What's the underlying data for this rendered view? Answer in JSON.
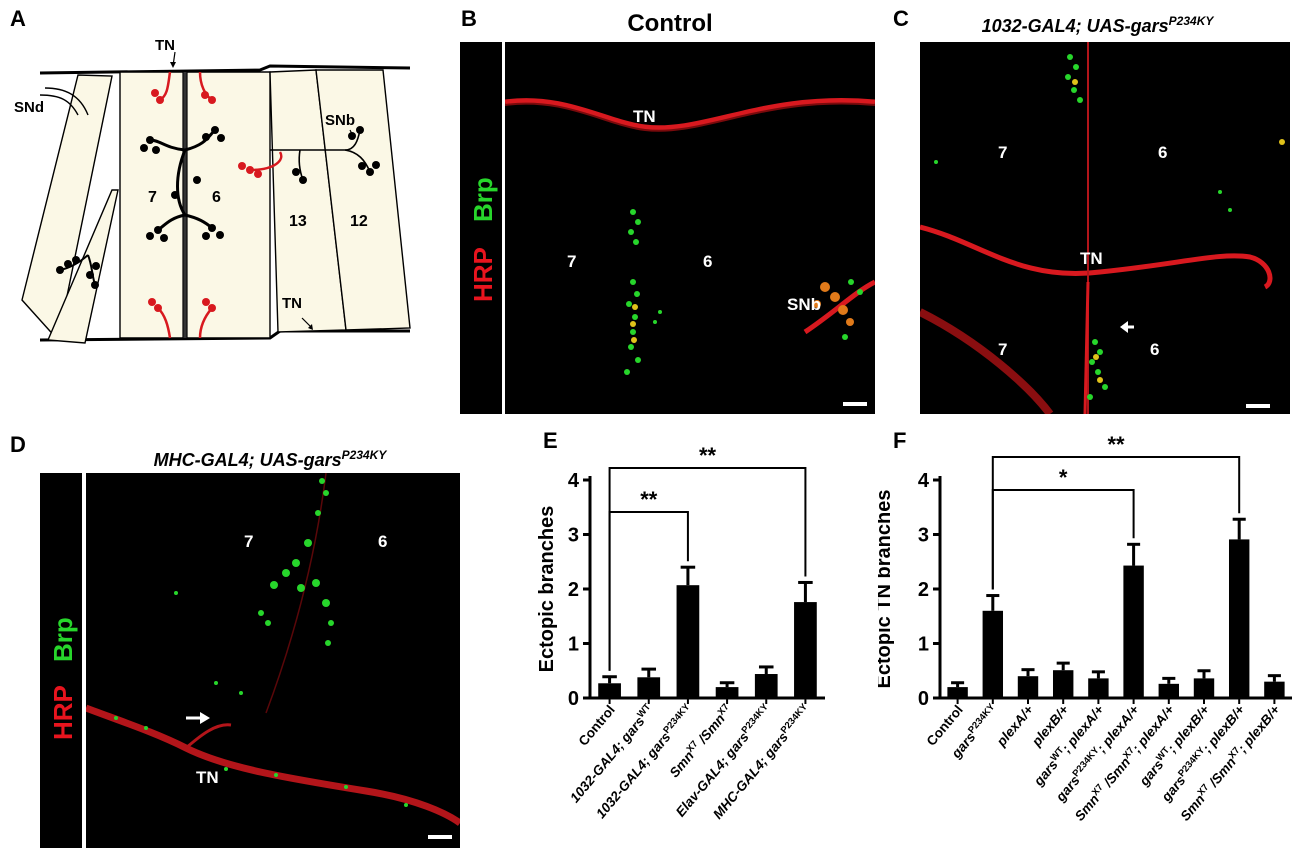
{
  "panels": {
    "A": {
      "letter": "A",
      "labels": {
        "tn_top": "TN",
        "tn_bottom": "TN",
        "snd": "SNd",
        "snb": "SNb",
        "m7": "7",
        "m6": "6",
        "m13": "13",
        "m12": "12"
      }
    },
    "B": {
      "letter": "B",
      "title": "Control",
      "stain_hrp": "HRP",
      "stain_brp": "Brp",
      "labels": {
        "tn": "TN",
        "m7": "7",
        "m6": "6",
        "snb": "SNb"
      }
    },
    "C": {
      "letter": "C",
      "title_main": "1032-GAL4; UAS-gars",
      "title_sup": "P234KY",
      "labels": {
        "m7_top": "7",
        "m6_top": "6",
        "tn": "TN",
        "m7_bot": "7",
        "m6_bot": "6"
      }
    },
    "D": {
      "letter": "D",
      "title_main": "MHC-GAL4; UAS-gars",
      "title_sup": "P234KY",
      "stain_hrp": "HRP",
      "stain_brp": "Brp",
      "labels": {
        "m7": "7",
        "m6": "6",
        "tn": "TN"
      }
    }
  },
  "colors": {
    "hrp": "#e8141e",
    "brp": "#27d62b",
    "bar": "#000000",
    "nerve_red": "#d8191f"
  },
  "chart_data": [
    {
      "panel": "E",
      "type": "bar",
      "ylabel": "Ectopic branches",
      "ylim": [
        0,
        4
      ],
      "yticks": [
        0,
        1,
        2,
        3,
        4
      ],
      "categories": [
        {
          "parts": [
            [
              "Control",
              ""
            ]
          ]
        },
        {
          "parts": [
            [
              "1032-GAL4; gars",
              ""
            ],
            [
              "WT",
              "sup"
            ]
          ]
        },
        {
          "parts": [
            [
              "1032-GAL4; gars",
              ""
            ],
            [
              "P234KY",
              "sup"
            ]
          ]
        },
        {
          "parts": [
            [
              "Smn",
              ""
            ],
            [
              "X7",
              "sup"
            ],
            [
              " /Smn",
              ""
            ],
            [
              "X7",
              "sup"
            ]
          ]
        },
        {
          "parts": [
            [
              "Elav-GAL4; gars",
              ""
            ],
            [
              "P234KY",
              "sup"
            ]
          ]
        },
        {
          "parts": [
            [
              "MHC-GAL4; gars",
              ""
            ],
            [
              "P234KY",
              "sup"
            ]
          ]
        }
      ],
      "values": [
        0.27,
        0.38,
        2.07,
        0.2,
        0.44,
        1.76
      ],
      "errors": [
        0.12,
        0.15,
        0.33,
        0.08,
        0.13,
        0.36
      ],
      "significance": [
        {
          "from": 0,
          "to": 2,
          "label": "**"
        },
        {
          "from": 0,
          "to": 5,
          "label": "**"
        }
      ]
    },
    {
      "panel": "F",
      "type": "bar",
      "ylabel": "Ectopic TN branches",
      "ylim": [
        0,
        4
      ],
      "yticks": [
        0,
        1,
        2,
        3,
        4
      ],
      "categories": [
        {
          "parts": [
            [
              "Control",
              ""
            ]
          ]
        },
        {
          "parts": [
            [
              "gars",
              ""
            ],
            [
              "P234KY",
              "sup"
            ]
          ]
        },
        {
          "parts": [
            [
              "plexA/+",
              ""
            ]
          ]
        },
        {
          "parts": [
            [
              "plexB/+",
              ""
            ]
          ]
        },
        {
          "parts": [
            [
              "gars",
              ""
            ],
            [
              "WT",
              "sup"
            ],
            [
              "; plexA/+",
              ""
            ]
          ]
        },
        {
          "parts": [
            [
              "gars",
              ""
            ],
            [
              "P234KY",
              "sup"
            ],
            [
              "; plexA/+",
              ""
            ]
          ]
        },
        {
          "parts": [
            [
              "Smn",
              ""
            ],
            [
              "X7",
              "sup"
            ],
            [
              " /Smn",
              ""
            ],
            [
              "X7",
              "sup"
            ],
            [
              "; plexA/+",
              ""
            ]
          ]
        },
        {
          "parts": [
            [
              "gars",
              ""
            ],
            [
              "WT",
              "sup"
            ],
            [
              "; plexB/+",
              ""
            ]
          ]
        },
        {
          "parts": [
            [
              "gars",
              ""
            ],
            [
              "P234KY",
              "sup"
            ],
            [
              "; plexB/+",
              ""
            ]
          ]
        },
        {
          "parts": [
            [
              "Smn",
              ""
            ],
            [
              "X7",
              "sup"
            ],
            [
              " /Smn",
              ""
            ],
            [
              "X7",
              "sup"
            ],
            [
              "; plexB/+",
              ""
            ]
          ]
        }
      ],
      "values": [
        0.2,
        1.6,
        0.4,
        0.51,
        0.36,
        2.43,
        0.26,
        0.36,
        2.91,
        0.3
      ],
      "errors": [
        0.08,
        0.28,
        0.12,
        0.13,
        0.12,
        0.39,
        0.1,
        0.14,
        0.37,
        0.11
      ],
      "significance": [
        {
          "from": 1,
          "to": 5,
          "label": "*"
        },
        {
          "from": 1,
          "to": 8,
          "label": "**"
        }
      ]
    }
  ]
}
